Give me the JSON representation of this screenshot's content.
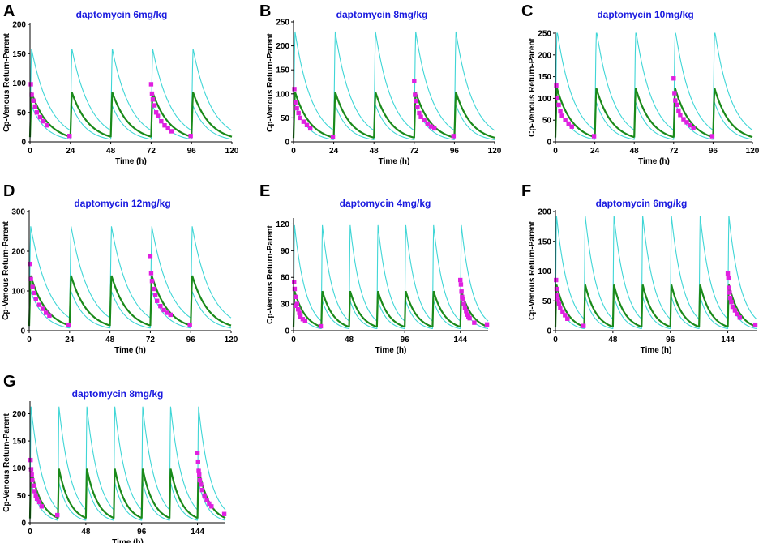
{
  "figure": {
    "colors": {
      "median": "#1a8a1a",
      "bounds": "#3fd6d6",
      "observed": "#e020e0",
      "title": "#1a1adf",
      "axis": "#000000"
    }
  },
  "chart_data": [
    {
      "panel": "A",
      "type": "line",
      "title": "daptomycin 6mg/kg",
      "xlabel": "Time (h)",
      "ylabel": "Cp-Venous Return-Parent",
      "xlim": [
        0,
        120
      ],
      "ylim": [
        0,
        200
      ],
      "xticks": [
        0,
        24,
        48,
        72,
        96,
        120
      ],
      "yticks": [
        0,
        50,
        100,
        150,
        200
      ],
      "dose_interval_h": 24,
      "n_doses": 5,
      "median_peak": 85,
      "median_trough": 8,
      "lower_peak": 62,
      "lower_trough": 4,
      "upper_peak": 160,
      "upper_trough": 18,
      "observed": [
        [
          0.5,
          98
        ],
        [
          1,
          80
        ],
        [
          2,
          70
        ],
        [
          3,
          60
        ],
        [
          4,
          50
        ],
        [
          6,
          42
        ],
        [
          8,
          35
        ],
        [
          10,
          28
        ],
        [
          23.5,
          10
        ],
        [
          72,
          98
        ],
        [
          72.5,
          82
        ],
        [
          73,
          72
        ],
        [
          74,
          62
        ],
        [
          75,
          50
        ],
        [
          76,
          44
        ],
        [
          78,
          35
        ],
        [
          80,
          28
        ],
        [
          82,
          23
        ],
        [
          84,
          18
        ],
        [
          95.5,
          10
        ]
      ]
    },
    {
      "panel": "B",
      "type": "line",
      "title": "daptomycin 8mg/kg",
      "xlabel": "Time (h)",
      "ylabel": "Cp-Venous Return-Parent",
      "xlim": [
        0,
        120
      ],
      "ylim": [
        0,
        250
      ],
      "xticks": [
        0,
        24,
        48,
        72,
        96,
        120
      ],
      "yticks": [
        0,
        50,
        100,
        150,
        200,
        250
      ],
      "dose_interval_h": 24,
      "n_doses": 5,
      "median_peak": 105,
      "median_trough": 8,
      "lower_peak": 78,
      "lower_trough": 4,
      "upper_peak": 232,
      "upper_trough": 22,
      "observed": [
        [
          0.5,
          110
        ],
        [
          1,
          82
        ],
        [
          2,
          70
        ],
        [
          3,
          60
        ],
        [
          4,
          50
        ],
        [
          6,
          42
        ],
        [
          8,
          35
        ],
        [
          10,
          28
        ],
        [
          23.5,
          10
        ],
        [
          72,
          127
        ],
        [
          72.5,
          98
        ],
        [
          73,
          85
        ],
        [
          74,
          72
        ],
        [
          75,
          60
        ],
        [
          76,
          52
        ],
        [
          78,
          45
        ],
        [
          80,
          38
        ],
        [
          82,
          32
        ],
        [
          84,
          28
        ],
        [
          95.5,
          12
        ]
      ]
    },
    {
      "panel": "C",
      "type": "line",
      "title": "daptomycin 10mg/kg",
      "xlabel": "Time (h)",
      "ylabel": "Cp-Venous Return-Parent",
      "xlim": [
        0,
        120
      ],
      "ylim": [
        0,
        250
      ],
      "xticks": [
        0,
        24,
        48,
        72,
        96,
        120
      ],
      "yticks": [
        0,
        50,
        100,
        150,
        200,
        250
      ],
      "dose_interval_h": 24,
      "n_doses": 5,
      "median_peak": 125,
      "median_trough": 10,
      "lower_peak": 92,
      "lower_trough": 5,
      "upper_peak": 262,
      "upper_trough": 25,
      "observed": [
        [
          0.5,
          130
        ],
        [
          1,
          100
        ],
        [
          2,
          85
        ],
        [
          3,
          70
        ],
        [
          4,
          60
        ],
        [
          6,
          50
        ],
        [
          8,
          42
        ],
        [
          10,
          35
        ],
        [
          23.5,
          13
        ],
        [
          72,
          146
        ],
        [
          72.5,
          112
        ],
        [
          73,
          95
        ],
        [
          74,
          85
        ],
        [
          75,
          72
        ],
        [
          76,
          62
        ],
        [
          78,
          52
        ],
        [
          80,
          45
        ],
        [
          82,
          38
        ],
        [
          84,
          32
        ],
        [
          95.5,
          13
        ]
      ]
    },
    {
      "panel": "D",
      "type": "line",
      "title": "daptomycin 12mg/kg",
      "xlabel": "Time (h)",
      "ylabel": "Cp-Venous Return-Parent",
      "xlim": [
        0,
        120
      ],
      "ylim": [
        0,
        300
      ],
      "xticks": [
        0,
        24,
        48,
        72,
        96,
        120
      ],
      "yticks": [
        0,
        100,
        200,
        300
      ],
      "dose_interval_h": 24,
      "n_doses": 5,
      "median_peak": 140,
      "median_trough": 12,
      "lower_peak": 100,
      "lower_trough": 6,
      "upper_peak": 265,
      "upper_trough": 30,
      "observed": [
        [
          0.5,
          168
        ],
        [
          1,
          130
        ],
        [
          2,
          110
        ],
        [
          3,
          95
        ],
        [
          4,
          80
        ],
        [
          6,
          65
        ],
        [
          8,
          55
        ],
        [
          10,
          45
        ],
        [
          12,
          38
        ],
        [
          23.5,
          15
        ],
        [
          72,
          188
        ],
        [
          72.5,
          145
        ],
        [
          73,
          125
        ],
        [
          74,
          105
        ],
        [
          75,
          90
        ],
        [
          76,
          75
        ],
        [
          78,
          62
        ],
        [
          80,
          52
        ],
        [
          82,
          45
        ],
        [
          84,
          40
        ],
        [
          95.5,
          15
        ]
      ]
    },
    {
      "panel": "E",
      "type": "line",
      "title": "daptomycin 4mg/kg",
      "xlabel": "Time (h)",
      "ylabel": "Cp-Venous Return-Parent",
      "xlim": [
        0,
        168
      ],
      "ylim": [
        0,
        125
      ],
      "xticks": [
        0,
        48,
        96,
        144
      ],
      "yticks": [
        0,
        30,
        60,
        90,
        120
      ],
      "dose_interval_h": 24,
      "n_doses": 7,
      "median_peak": 45,
      "median_trough": 4,
      "lower_peak": 34,
      "lower_trough": 2,
      "upper_peak": 120,
      "upper_trough": 10,
      "observed": [
        [
          0.5,
          55
        ],
        [
          1,
          47
        ],
        [
          1.5,
          28
        ],
        [
          2,
          38
        ],
        [
          3,
          30
        ],
        [
          4,
          24
        ],
        [
          5,
          20
        ],
        [
          6,
          16
        ],
        [
          8,
          13
        ],
        [
          10,
          11
        ],
        [
          23.5,
          5
        ],
        [
          144,
          57
        ],
        [
          144.5,
          52
        ],
        [
          145,
          44
        ],
        [
          145.5,
          38
        ],
        [
          146,
          36
        ],
        [
          147,
          30
        ],
        [
          148,
          26
        ],
        [
          149,
          22
        ],
        [
          150,
          18
        ],
        [
          151,
          16
        ],
        [
          152,
          14
        ],
        [
          156,
          9
        ],
        [
          167,
          7
        ]
      ]
    },
    {
      "panel": "F",
      "type": "line",
      "title": "daptomycin 6mg/kg",
      "xlabel": "Time (h)",
      "ylabel": "Cp-Venous Return-Parent",
      "xlim": [
        0,
        168
      ],
      "ylim": [
        0,
        200
      ],
      "xticks": [
        0,
        48,
        96,
        144
      ],
      "yticks": [
        0,
        50,
        100,
        150,
        200
      ],
      "dose_interval_h": 24,
      "n_doses": 7,
      "median_peak": 78,
      "median_trough": 6,
      "lower_peak": 58,
      "lower_trough": 3,
      "upper_peak": 195,
      "upper_trough": 18,
      "observed": [
        [
          0.5,
          85
        ],
        [
          1,
          70
        ],
        [
          1.5,
          60
        ],
        [
          2,
          52
        ],
        [
          3,
          45
        ],
        [
          4,
          38
        ],
        [
          6,
          32
        ],
        [
          8,
          26
        ],
        [
          10,
          20
        ],
        [
          23.5,
          8
        ],
        [
          144,
          96
        ],
        [
          144.5,
          88
        ],
        [
          145,
          72
        ],
        [
          145.5,
          64
        ],
        [
          146,
          55
        ],
        [
          147,
          48
        ],
        [
          148,
          40
        ],
        [
          150,
          34
        ],
        [
          152,
          28
        ],
        [
          154,
          22
        ],
        [
          167,
          10
        ]
      ]
    },
    {
      "panel": "G",
      "type": "line",
      "title": "daptomycin 8mg/kg",
      "xlabel": "Time (h)",
      "ylabel": "Cp-Venous Return-Parent",
      "xlim": [
        0,
        168
      ],
      "ylim": [
        0,
        220
      ],
      "xticks": [
        0,
        48,
        96,
        144
      ],
      "yticks": [
        0,
        50,
        100,
        150,
        200
      ],
      "dose_interval_h": 24,
      "n_doses": 7,
      "median_peak": 100,
      "median_trough": 8,
      "lower_peak": 75,
      "lower_trough": 4,
      "upper_peak": 215,
      "upper_trough": 22,
      "observed": [
        [
          0.5,
          115
        ],
        [
          1,
          98
        ],
        [
          1.5,
          88
        ],
        [
          2,
          78
        ],
        [
          3,
          68
        ],
        [
          4,
          58
        ],
        [
          5,
          50
        ],
        [
          6,
          44
        ],
        [
          8,
          38
        ],
        [
          10,
          30
        ],
        [
          23.5,
          14
        ],
        [
          144,
          128
        ],
        [
          144.5,
          112
        ],
        [
          145,
          95
        ],
        [
          145.5,
          88
        ],
        [
          146,
          78
        ],
        [
          147,
          70
        ],
        [
          148,
          60
        ],
        [
          150,
          50
        ],
        [
          152,
          42
        ],
        [
          154,
          35
        ],
        [
          156,
          30
        ],
        [
          167,
          16
        ]
      ]
    }
  ]
}
